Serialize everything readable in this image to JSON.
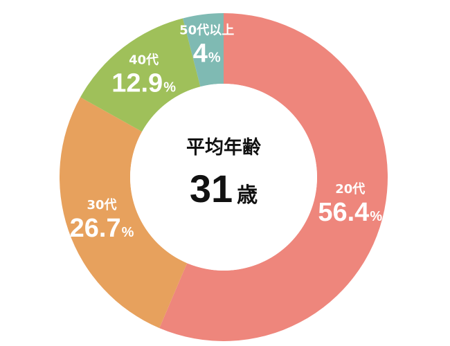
{
  "chart_data": {
    "type": "pie",
    "categories": [
      "20代",
      "30代",
      "40代",
      "50代以上"
    ],
    "values": [
      56.4,
      26.7,
      12.9,
      4
    ],
    "value_labels": [
      "56.4",
      "26.7",
      "12.9",
      "4"
    ],
    "unit": "%",
    "colors": [
      "#ee867c",
      "#e7a15d",
      "#9fc05a",
      "#7fbab3"
    ],
    "donut": true,
    "start": "top, clockwise",
    "center": {
      "title": "平均年齢",
      "value": "31",
      "unit": "歳"
    }
  }
}
